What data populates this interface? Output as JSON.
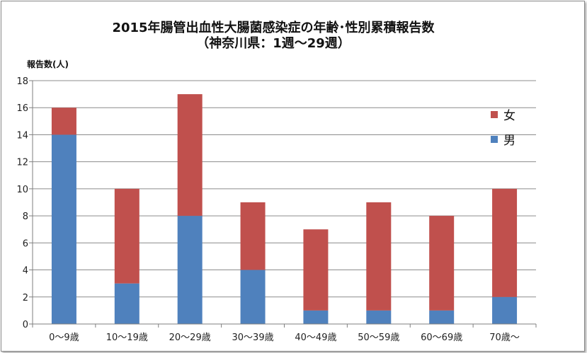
{
  "chart_data": {
    "type": "bar",
    "stacked": true,
    "title": "2015年腸管出血性大腸菌感染症の年齢･性別累積報告数",
    "subtitle": "（神奈川県：1週～29週）",
    "ylabel": "報告数(人)",
    "xlabel": "",
    "ylim": [
      0,
      18
    ],
    "yticks": [
      0,
      2,
      4,
      6,
      8,
      10,
      12,
      14,
      16,
      18
    ],
    "grid": true,
    "legend_position": "right",
    "categories": [
      "0～9歳",
      "10～19歳",
      "20～29歳",
      "30～39歳",
      "40～49歳",
      "50～59歳",
      "60～69歳",
      "70歳～"
    ],
    "series": [
      {
        "name": "男",
        "color": "#4F81BD",
        "values": [
          14,
          3,
          8,
          4,
          1,
          1,
          1,
          2
        ]
      },
      {
        "name": "女",
        "color": "#C0504D",
        "values": [
          2,
          7,
          9,
          5,
          6,
          8,
          7,
          8
        ]
      }
    ],
    "legend_order": [
      "女",
      "男"
    ]
  }
}
